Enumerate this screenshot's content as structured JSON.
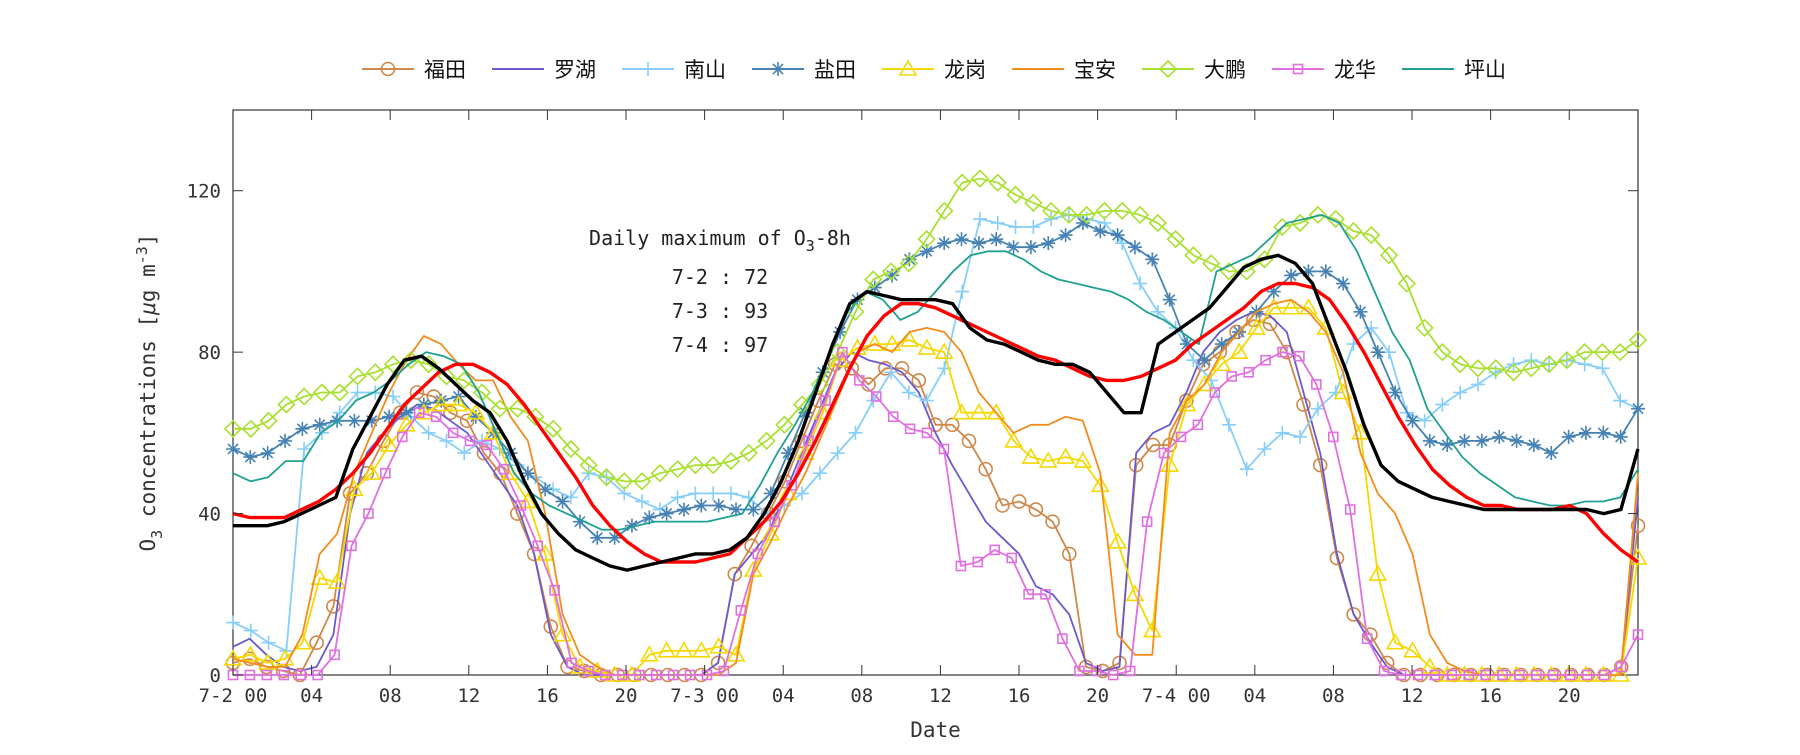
{
  "chart_data": {
    "type": "line",
    "title": "",
    "xlabel": "Date",
    "ylabel_main": "O",
    "ylabel_sub": "3",
    "ylabel_mid": " concentrations [",
    "ylabel_mu": "μ",
    "ylabel_units": "g m",
    "ylabel_sup": "-3",
    "ylabel_end": "]",
    "ylim": [
      0,
      140
    ],
    "yticks": [
      0,
      40,
      80,
      120
    ],
    "ytick_labels": [
      "0",
      "40",
      "80",
      "120"
    ],
    "x_hours_per_day": 24,
    "xtick_positions_hours": [
      0,
      4,
      8,
      12,
      16,
      20,
      24,
      28,
      32,
      36,
      40,
      44,
      48,
      52,
      56,
      60,
      64,
      68
    ],
    "xtick_labels": [
      "7-2 00",
      "04",
      "08",
      "12",
      "16",
      "20",
      "7-3 00",
      "04",
      "08",
      "12",
      "16",
      "20",
      "7-4 00",
      "04",
      "08",
      "12",
      "16",
      "20"
    ],
    "xlim_hours": [
      0,
      71.5
    ],
    "grid": false,
    "legend_placement": "top",
    "annotation": {
      "title_prefix": "Daily maximum of O",
      "title_sub": "3",
      "title_suffix": "-8h",
      "lines": [
        "7-2 : 72",
        "7-3 : 93",
        "7-4 : 97"
      ]
    },
    "series": [
      {
        "name": "福田",
        "color": "#d0874a",
        "marker": "circle",
        "values": [
          3,
          4,
          2,
          1,
          0,
          8,
          17,
          45,
          50,
          58,
          65,
          70,
          69,
          65,
          63,
          55,
          50,
          40,
          30,
          12,
          2,
          1,
          0,
          0,
          0,
          0,
          0,
          0,
          0,
          3,
          25,
          32,
          40,
          48,
          58,
          68,
          77,
          76,
          72,
          76,
          76,
          73,
          62,
          62,
          58,
          51,
          42,
          43,
          41,
          38,
          30,
          2,
          1,
          3,
          52,
          57,
          57,
          68,
          77,
          80,
          85,
          88,
          87,
          80,
          67,
          52,
          29,
          15,
          10,
          3,
          0,
          0,
          0,
          0,
          0,
          0,
          0,
          0,
          0,
          0,
          0,
          0,
          0,
          2,
          37
        ]
      },
      {
        "name": "罗湖",
        "color": "#6a5acd",
        "marker": "none",
        "values": [
          7,
          9,
          5,
          2,
          1,
          2,
          10,
          40,
          55,
          60,
          64,
          67,
          66,
          63,
          60,
          54,
          48,
          42,
          30,
          10,
          2,
          0,
          0,
          0,
          0,
          0,
          0,
          0,
          0,
          3,
          25,
          30,
          35,
          45,
          55,
          65,
          75,
          80,
          78,
          77,
          75,
          70,
          60,
          52,
          45,
          38,
          34,
          30,
          22,
          20,
          15,
          3,
          1,
          2,
          55,
          60,
          62,
          70,
          80,
          85,
          88,
          90,
          89,
          85,
          70,
          55,
          30,
          15,
          8,
          2,
          0,
          0,
          0,
          0,
          0,
          0,
          0,
          0,
          0,
          0,
          0,
          0,
          0,
          2,
          44
        ]
      },
      {
        "name": "南山",
        "color": "#87cefa",
        "marker": "plus",
        "values": [
          13,
          11,
          8,
          6,
          56,
          60,
          65,
          70,
          70,
          69,
          64,
          60,
          58,
          55,
          58,
          56,
          52,
          49,
          46,
          44,
          50,
          49,
          45,
          43,
          41,
          44,
          45,
          45,
          45,
          44,
          40,
          42,
          45,
          50,
          55,
          60,
          68,
          75,
          70,
          68,
          76,
          95,
          113,
          112,
          111,
          111,
          113,
          114,
          113,
          112,
          107,
          97,
          90,
          86,
          78,
          73,
          62,
          51,
          56,
          60,
          59,
          66,
          70,
          82,
          86,
          80,
          65,
          63,
          67,
          70,
          72,
          75,
          77,
          78,
          77,
          78,
          77,
          76,
          68,
          66
        ]
      },
      {
        "name": "盐田",
        "color": "#4682b4",
        "marker": "asterisk",
        "values": [
          56,
          54,
          55,
          58,
          61,
          62,
          63,
          63,
          63,
          64,
          65,
          67,
          68,
          69,
          64,
          60,
          55,
          50,
          46,
          43,
          38,
          34,
          34,
          37,
          39,
          40,
          41,
          42,
          42,
          41,
          41,
          45,
          55,
          65,
          75,
          85,
          93,
          96,
          99,
          103,
          105,
          107,
          108,
          107,
          108,
          106,
          106,
          107,
          109,
          112,
          110,
          109,
          106,
          103,
          93,
          82,
          78,
          82,
          85,
          90,
          95,
          99,
          100,
          100,
          97,
          90,
          80,
          70,
          63,
          58,
          57,
          58,
          58,
          59,
          58,
          57,
          55,
          59,
          60,
          60,
          59,
          66
        ]
      },
      {
        "name": "龙岗",
        "color": "#f5d800",
        "marker": "triangle",
        "values": [
          4,
          5,
          3,
          4,
          8,
          24,
          23,
          46,
          50,
          57,
          62,
          65,
          67,
          67,
          65,
          60,
          50,
          43,
          30,
          10,
          2,
          1,
          0,
          0,
          5,
          6,
          6,
          6,
          7,
          5,
          26,
          35,
          45,
          55,
          65,
          78,
          81,
          82,
          82,
          83,
          81,
          80,
          65,
          65,
          65,
          58,
          54,
          53,
          54,
          53,
          47,
          33,
          20,
          11,
          52,
          67,
          72,
          77,
          80,
          86,
          91,
          91,
          91,
          86,
          70,
          60,
          25,
          8,
          6,
          2,
          0,
          0,
          0,
          0,
          0,
          0,
          0,
          0,
          0,
          0,
          0,
          29
        ]
      },
      {
        "name": "宝安",
        "color": "#f28c1f",
        "marker": "none",
        "values": [
          4,
          3,
          2,
          2,
          10,
          30,
          35,
          50,
          60,
          70,
          78,
          84,
          82,
          77,
          73,
          73,
          64,
          58,
          40,
          15,
          5,
          2,
          0,
          0,
          0,
          0,
          0,
          0,
          0,
          3,
          25,
          33,
          42,
          50,
          60,
          70,
          80,
          82,
          80,
          85,
          86,
          85,
          80,
          70,
          65,
          60,
          62,
          62,
          64,
          63,
          50,
          10,
          5,
          5,
          60,
          68,
          72,
          80,
          85,
          90,
          92,
          93,
          90,
          85,
          75,
          55,
          45,
          40,
          30,
          10,
          3,
          1,
          0,
          0,
          0,
          0,
          0,
          0,
          0,
          0,
          0,
          50
        ]
      },
      {
        "name": "大鹏",
        "color": "#a8e030",
        "marker": "diamond",
        "values": [
          61,
          61,
          63,
          67,
          69,
          70,
          70,
          74,
          75,
          77,
          78,
          77,
          74,
          73,
          70,
          66,
          66,
          64,
          61,
          56,
          52,
          49,
          48,
          48,
          50,
          51,
          52,
          52,
          53,
          55,
          58,
          62,
          67,
          72,
          80,
          90,
          98,
          100,
          102,
          108,
          115,
          122,
          123,
          122,
          119,
          117,
          115,
          114,
          114,
          115,
          115,
          114,
          112,
          108,
          104,
          102,
          100,
          100,
          103,
          111,
          112,
          114,
          113,
          110,
          109,
          104,
          97,
          86,
          80,
          77,
          76,
          76,
          75,
          76,
          77,
          78,
          80,
          80,
          80,
          83
        ]
      },
      {
        "name": "龙华",
        "color": "#e070e0",
        "marker": "square",
        "values": [
          0,
          0,
          0,
          0,
          0,
          0,
          5,
          32,
          40,
          50,
          59,
          65,
          64,
          60,
          58,
          57,
          51,
          42,
          32,
          21,
          3,
          1,
          0,
          0,
          0,
          0,
          0,
          0,
          0,
          1,
          16,
          30,
          38,
          47,
          58,
          68,
          80,
          73,
          69,
          64,
          61,
          60,
          56,
          27,
          28,
          31,
          29,
          20,
          20,
          9,
          1,
          1,
          0,
          1,
          38,
          55,
          59,
          62,
          70,
          74,
          75,
          78,
          80,
          79,
          72,
          59,
          41,
          9,
          1,
          0,
          0,
          0,
          0,
          0,
          0,
          0,
          0,
          0,
          0,
          0,
          0,
          0,
          2,
          10
        ]
      },
      {
        "name": "坪山",
        "color": "#20a090",
        "marker": "none",
        "values": [
          50,
          48,
          49,
          53,
          53,
          60,
          63,
          68,
          70,
          73,
          77,
          80,
          79,
          77,
          70,
          60,
          50,
          45,
          42,
          40,
          38,
          36,
          36,
          37,
          38,
          38,
          38,
          38,
          39,
          40,
          47,
          55,
          62,
          70,
          80,
          90,
          95,
          93,
          88,
          90,
          95,
          100,
          104,
          105,
          105,
          103,
          100,
          98,
          97,
          96,
          95,
          93,
          90,
          88,
          85,
          82,
          100,
          102,
          104,
          108,
          112,
          113,
          114,
          112,
          105,
          95,
          85,
          78,
          66,
          60,
          54,
          50,
          47,
          44,
          43,
          42,
          42,
          43,
          43,
          44,
          51
        ]
      },
      {
        "name": "",
        "color": "#ff0000",
        "marker": "none",
        "values": [
          40,
          39,
          39,
          39,
          41,
          43,
          46,
          50,
          55,
          61,
          67,
          71,
          75,
          77,
          77,
          75,
          72,
          67,
          61,
          55,
          49,
          42,
          37,
          33,
          30,
          28,
          28,
          28,
          29,
          30,
          34,
          38,
          43,
          50,
          58,
          67,
          76,
          84,
          89,
          92,
          92,
          91,
          89,
          87,
          85,
          83,
          81,
          79,
          78,
          76,
          74,
          73,
          73,
          74,
          76,
          78,
          82,
          85,
          88,
          91,
          95,
          97,
          97,
          96,
          93,
          87,
          80,
          72,
          64,
          57,
          51,
          47,
          44,
          42,
          42,
          41,
          41,
          41,
          42,
          40,
          35,
          31,
          28
        ]
      },
      {
        "name": "",
        "color": "#000000",
        "marker": "none",
        "values": [
          37,
          37,
          37,
          38,
          40,
          42,
          44,
          56,
          64,
          72,
          78,
          79,
          76,
          72,
          68,
          65,
          58,
          48,
          40,
          35,
          31,
          29,
          27,
          26,
          27,
          28,
          29,
          30,
          30,
          31,
          34,
          40,
          48,
          58,
          70,
          82,
          92,
          95,
          94,
          93,
          93,
          93,
          92,
          86,
          83,
          82,
          80,
          78,
          77,
          77,
          75,
          70,
          65,
          65,
          82,
          85,
          88,
          91,
          96,
          101,
          103,
          104,
          102,
          97,
          86,
          75,
          62,
          52,
          48,
          46,
          44,
          43,
          42,
          41,
          41,
          41,
          41,
          41,
          41,
          41,
          40,
          41,
          56
        ]
      }
    ]
  }
}
